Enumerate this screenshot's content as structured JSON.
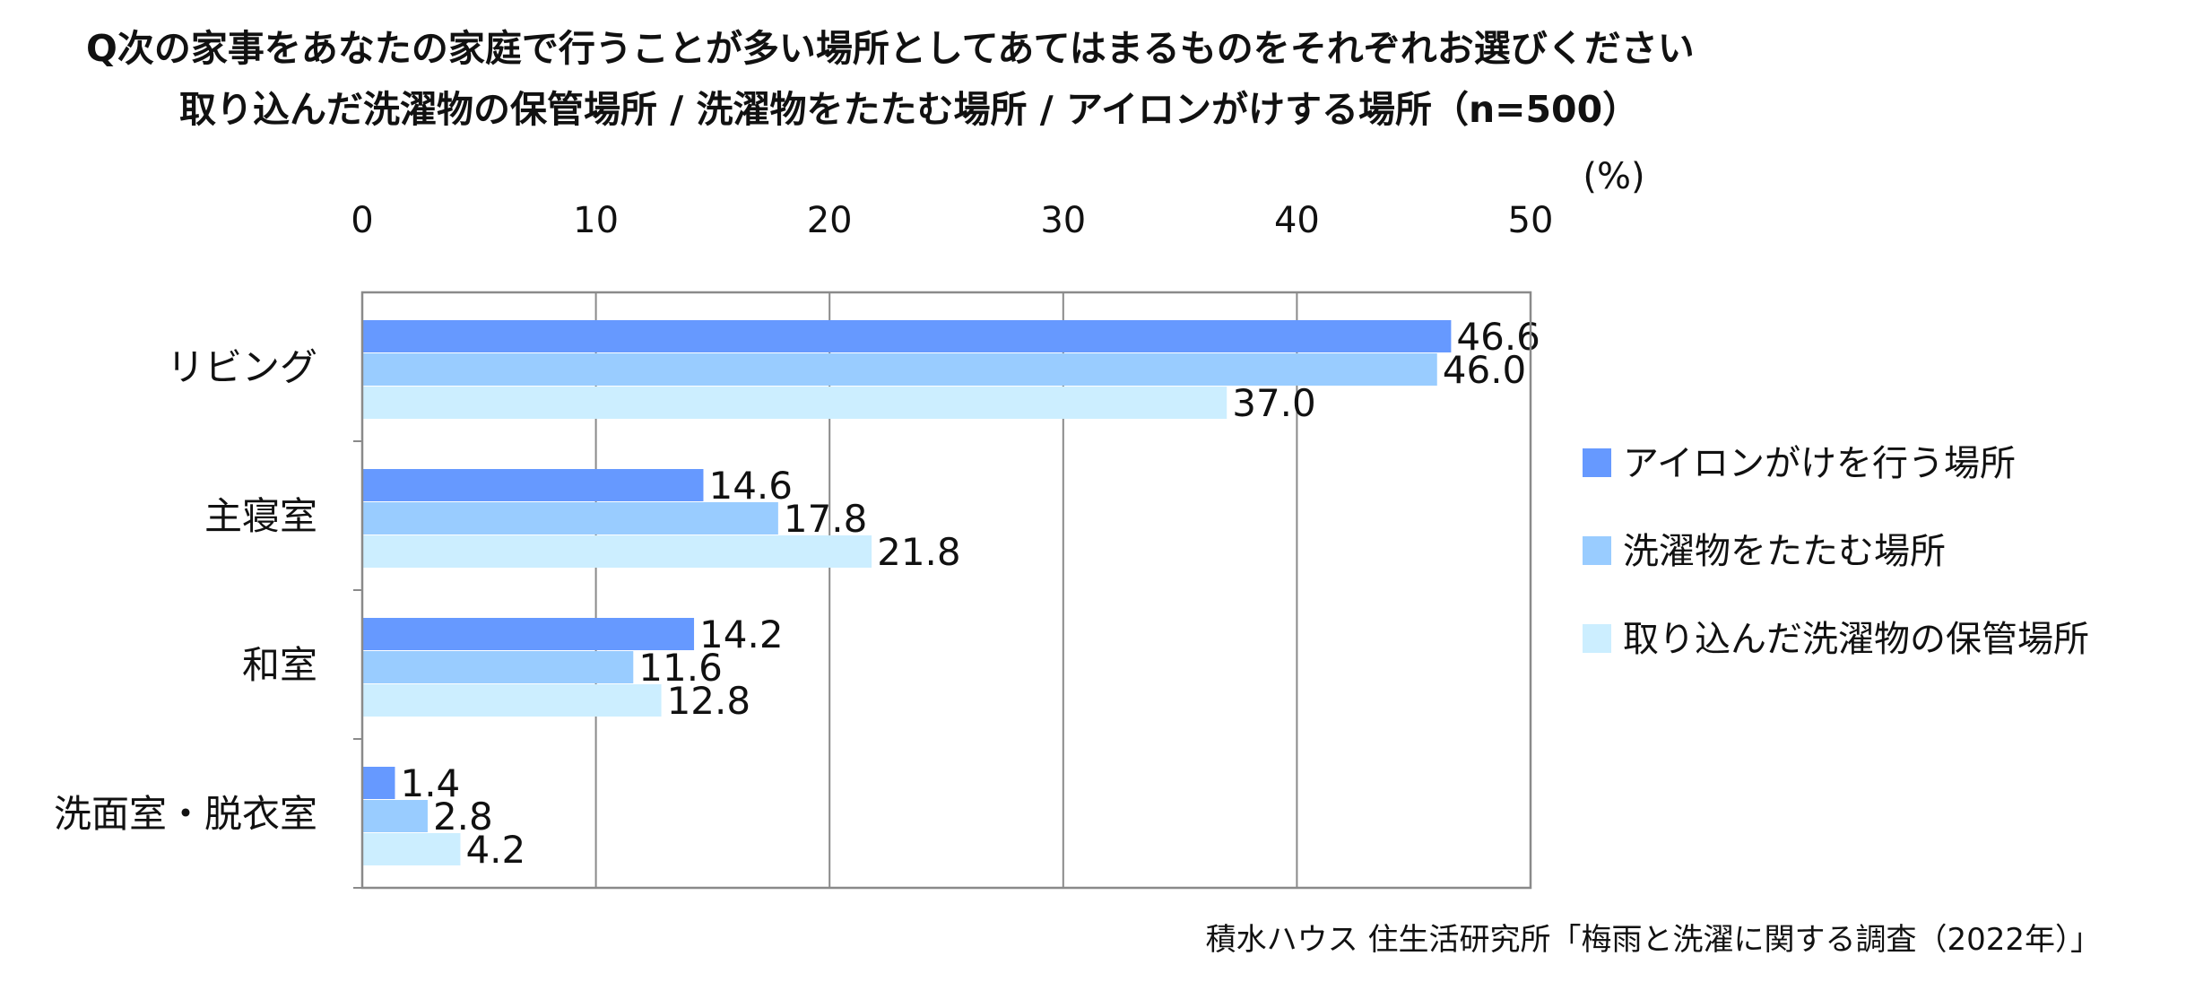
{
  "title_line_1": "Q次の家事をあなたの家庭で行うことが多い場所としてあてはまるものをそれぞれお選びください",
  "title_line_2": "取り込んだ洗濯物の保管場所 / 洗濯物をたたむ場所 / アイロンがけする場所（n=500）",
  "source": "積水ハウス 住生活研究所「梅雨と洗濯に関する調査（2022年）」",
  "chart_data": {
    "type": "bar",
    "orientation": "horizontal",
    "unit": "(%)",
    "xlim": [
      0,
      50
    ],
    "x_ticks": [
      "0",
      "10",
      "20",
      "30",
      "40",
      "50"
    ],
    "grid": true,
    "legend_position": "right",
    "categories": [
      "リビング",
      "主寝室",
      "和室",
      "洗面室・脱衣室"
    ],
    "series": [
      {
        "name": "アイロンがけを行う場所",
        "color": "#6699ff",
        "values": [
          46.6,
          14.6,
          14.2,
          1.4
        ],
        "labels": [
          "46.6",
          "14.6",
          "14.2",
          "1.4"
        ]
      },
      {
        "name": "洗濯物をたたむ場所",
        "color": "#99ccff",
        "values": [
          46.0,
          17.8,
          11.6,
          2.8
        ],
        "labels": [
          "46.0",
          "17.8",
          "11.6",
          "2.8"
        ]
      },
      {
        "name": "取り込んだ洗濯物の保管場所",
        "color": "#cceeff",
        "values": [
          37.0,
          21.8,
          12.8,
          4.2
        ],
        "labels": [
          "37.0",
          "21.8",
          "12.8",
          "4.2"
        ]
      }
    ]
  }
}
